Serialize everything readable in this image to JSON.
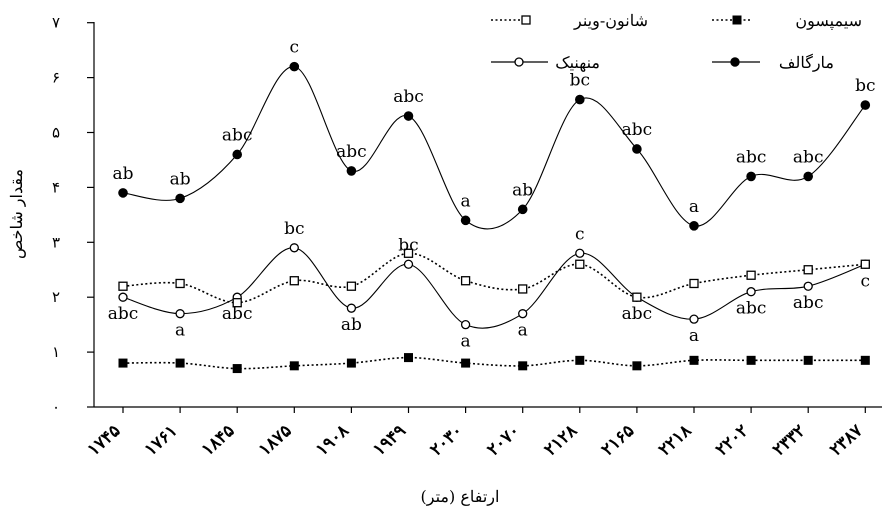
{
  "chart_data": {
    "type": "line",
    "xlabel": "ارتفاع (متر)",
    "ylabel": "مقدار شاخص",
    "ylim": [
      0,
      7
    ],
    "y_ticks": [
      {
        "value": 0,
        "label": "۰"
      },
      {
        "value": 1,
        "label": "۱"
      },
      {
        "value": 2,
        "label": "۲"
      },
      {
        "value": 3,
        "label": "۳"
      },
      {
        "value": 4,
        "label": "۴"
      },
      {
        "value": 5,
        "label": "۵"
      },
      {
        "value": 6,
        "label": "۶"
      },
      {
        "value": 7,
        "label": "۷"
      }
    ],
    "categories": [
      "۱۷۴۵",
      "۱۷۶۱",
      "۱۸۴۵",
      "۱۸۷۵",
      "۱۹۰۸",
      "۱۹۴۹",
      "۲۰۳۰",
      "۲۰۷۰",
      "۲۱۲۸",
      "۲۱۶۵",
      "۲۲۱۸",
      "۲۲۰۲",
      "۲۳۳۲",
      "۲۳۸۷"
    ],
    "legend_placement": "top",
    "grid": false,
    "series": [
      {
        "name": "مارگالف",
        "marker": "filled-circle",
        "line": "solid",
        "smooth": true,
        "values": [
          3.9,
          3.8,
          4.6,
          6.2,
          4.3,
          5.3,
          3.4,
          3.6,
          5.6,
          4.7,
          3.3,
          4.2,
          4.2,
          5.5
        ],
        "labels": [
          "ab",
          "ab",
          "abc",
          "c",
          "abc",
          "abc",
          "a",
          "ab",
          "bc",
          "abc",
          "a",
          "abc",
          "abc",
          "bc"
        ],
        "label_position": "above"
      },
      {
        "name": "منهنیک",
        "marker": "open-circle",
        "line": "solid",
        "smooth": true,
        "values": [
          2.0,
          1.7,
          2.0,
          2.9,
          1.8,
          2.6,
          1.5,
          1.7,
          2.8,
          2.0,
          1.6,
          2.1,
          2.2,
          2.6
        ],
        "labels": [
          "abc",
          "a",
          "abc",
          "bc",
          "ab",
          "bc",
          "a",
          "a",
          "c",
          "abc",
          "a",
          "abc",
          "abc",
          "c"
        ],
        "label_position": "mixed"
      },
      {
        "name": "شانون-وینر",
        "marker": "open-square",
        "line": "dotted",
        "smooth": true,
        "values": [
          2.2,
          2.25,
          1.9,
          2.3,
          2.2,
          2.8,
          2.3,
          2.15,
          2.6,
          2.0,
          2.25,
          2.4,
          2.5,
          2.6
        ],
        "labels": []
      },
      {
        "name": "سیمپسون",
        "marker": "filled-square",
        "line": "dotted",
        "smooth": true,
        "values": [
          0.8,
          0.8,
          0.7,
          0.75,
          0.8,
          0.9,
          0.8,
          0.75,
          0.85,
          0.75,
          0.85,
          0.85,
          0.85,
          0.85
        ],
        "labels": []
      }
    ]
  }
}
